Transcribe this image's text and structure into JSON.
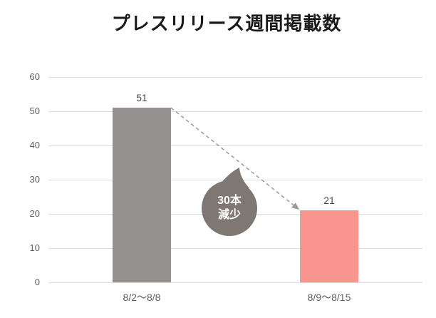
{
  "title": "プレスリリース週間掲載数",
  "chart_data": {
    "type": "bar",
    "title": "プレスリリース週間掲載数",
    "categories": [
      "8/2〜8/8",
      "8/9〜8/15"
    ],
    "values": [
      51,
      21
    ],
    "series_colors": [
      "#959190",
      "#F9958F"
    ],
    "xlabel": "",
    "ylabel": "",
    "ylim": [
      0,
      60
    ],
    "yticks": [
      0,
      10,
      20,
      30,
      40,
      50,
      60
    ],
    "grid": true,
    "legend_position": "none",
    "annotation": {
      "lines": [
        "30本",
        "減少"
      ],
      "bubble_color": "#7F7771",
      "text_color": "#FFFFFF"
    },
    "connector": {
      "style": "dashed-arrow",
      "color": "#9A9A9A",
      "from": "top of bar 8/2〜8/8",
      "to": "top of bar 8/9〜8/15"
    }
  },
  "colors": {
    "background": "#FFFFFF",
    "title_text": "#1A1A1A",
    "axis_text": "#5F5F5F",
    "value_text": "#484848",
    "gridline": "#DCDCDC",
    "bar_previous_week": "#959190",
    "bar_current_week": "#F9958F"
  }
}
